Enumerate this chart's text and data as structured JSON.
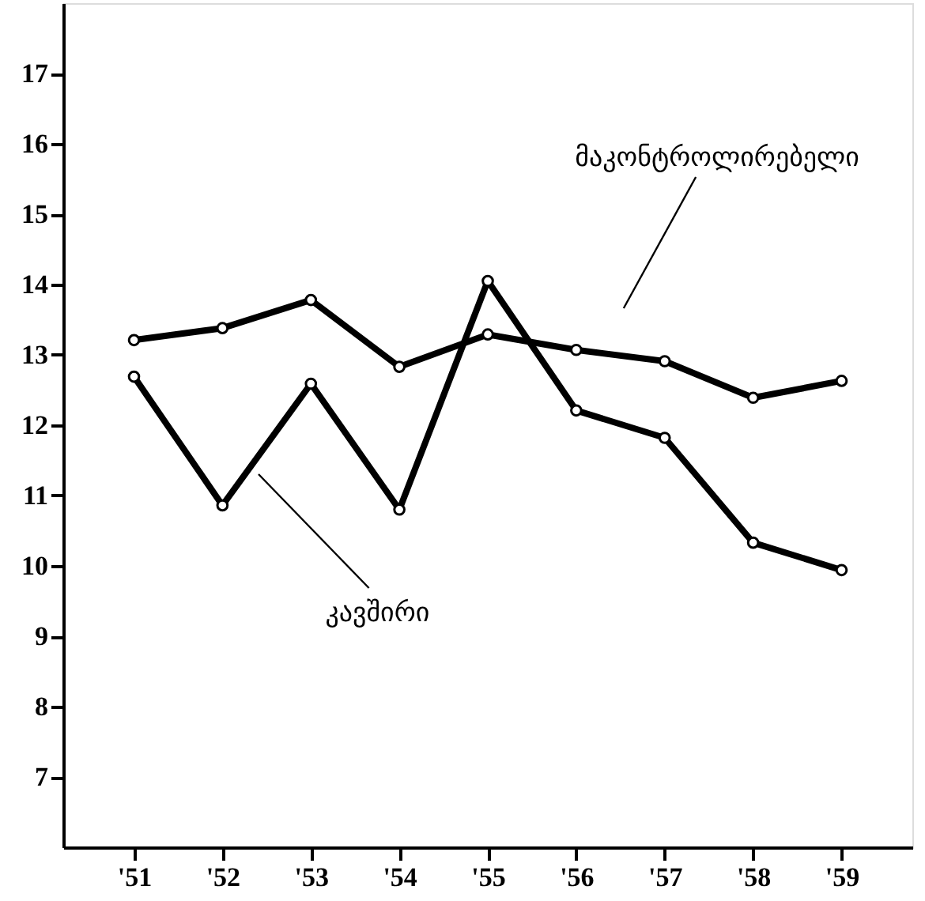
{
  "chart_data": {
    "type": "line",
    "categories": [
      "'51",
      "'52",
      "'53",
      "'54",
      "'55",
      "'56",
      "'57",
      "'58",
      "'59"
    ],
    "series": [
      {
        "name": "მაკონტროლირებელი",
        "color": "#000000",
        "values": [
          13.21,
          13.38,
          13.78,
          12.83,
          13.29,
          13.07,
          12.91,
          12.39,
          12.63
        ]
      },
      {
        "name": "კავშირი",
        "color": "#000000",
        "values": [
          12.69,
          10.86,
          12.59,
          10.8,
          14.05,
          12.21,
          11.82,
          10.33,
          9.94
        ]
      }
    ],
    "ylim": [
      6,
      18
    ],
    "yticks": [
      7,
      8,
      9,
      10,
      11,
      12,
      13,
      14,
      15,
      16,
      17
    ],
    "marker": "circle",
    "line_style": "solid"
  }
}
